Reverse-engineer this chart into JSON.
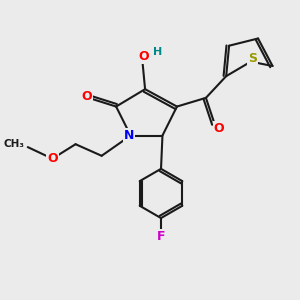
{
  "bg_color": "#ebebeb",
  "bond_color": "#1a1a1a",
  "atom_colors": {
    "O": "#ff0000",
    "N": "#0000ff",
    "S": "#999900",
    "F": "#cc00cc",
    "H": "#008888",
    "C": "#1a1a1a"
  },
  "font_size": 9,
  "line_width": 1.5,
  "xlim": [
    0,
    10
  ],
  "ylim": [
    0,
    10
  ]
}
